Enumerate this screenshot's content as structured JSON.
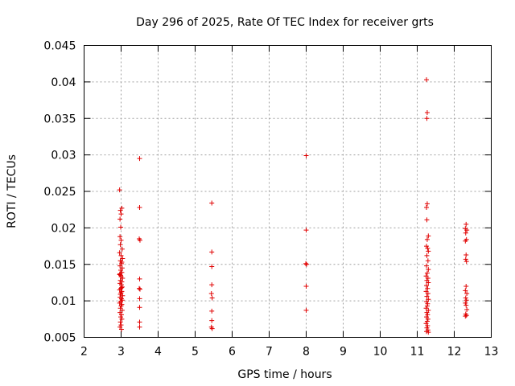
{
  "chart_data": {
    "type": "scatter",
    "title": "Day 296 of 2025, Rate Of TEC Index for receiver grts",
    "xlabel": "GPS time / hours",
    "ylabel": "ROTI / TECUs",
    "xlim": [
      2,
      13
    ],
    "ylim": [
      0.005,
      0.045
    ],
    "x_ticks": [
      "2",
      "3",
      "4",
      "5",
      "6",
      "7",
      "8",
      "9",
      "10",
      "11",
      "12",
      "13"
    ],
    "y_ticks": [
      "0.005",
      "0.01",
      "0.015",
      "0.02",
      "0.025",
      "0.03",
      "0.035",
      "0.04",
      "0.045"
    ],
    "grid": true,
    "marker": "plus",
    "color": "#e00000",
    "series": [
      {
        "points": [
          [
            2.96,
            0.0252
          ],
          [
            2.98,
            0.0224
          ],
          [
            3.0,
            0.0219
          ],
          [
            3.02,
            0.0227
          ],
          [
            2.97,
            0.0212
          ],
          [
            2.99,
            0.0201
          ],
          [
            2.97,
            0.0188
          ],
          [
            3.0,
            0.0183
          ],
          [
            2.98,
            0.0177
          ],
          [
            3.03,
            0.0171
          ],
          [
            2.96,
            0.0166
          ],
          [
            3.0,
            0.0162
          ],
          [
            3.04,
            0.0158
          ],
          [
            2.98,
            0.0155
          ],
          [
            3.01,
            0.0151
          ],
          [
            2.97,
            0.0148
          ],
          [
            3.03,
            0.0145
          ],
          [
            2.99,
            0.0142
          ],
          [
            3.02,
            0.0139
          ],
          [
            2.96,
            0.0136
          ],
          [
            3.0,
            0.0133
          ],
          [
            3.04,
            0.0131
          ],
          [
            2.98,
            0.0128
          ],
          [
            3.02,
            0.0126
          ],
          [
            2.97,
            0.0124
          ],
          [
            3.01,
            0.0122
          ],
          [
            3.03,
            0.0119
          ],
          [
            2.99,
            0.0117
          ],
          [
            2.96,
            0.0115
          ],
          [
            3.02,
            0.0113
          ],
          [
            3.0,
            0.0111
          ],
          [
            2.98,
            0.0109
          ],
          [
            3.04,
            0.0107
          ],
          [
            2.97,
            0.0105
          ],
          [
            3.01,
            0.0103
          ],
          [
            3.03,
            0.0101
          ],
          [
            2.99,
            0.0099
          ],
          [
            2.96,
            0.0097
          ],
          [
            3.02,
            0.0095
          ],
          [
            3.0,
            0.0093
          ],
          [
            2.98,
            0.009
          ],
          [
            3.03,
            0.0087
          ],
          [
            2.97,
            0.0084
          ],
          [
            3.01,
            0.0081
          ],
          [
            2.99,
            0.0078
          ],
          [
            3.02,
            0.0075
          ],
          [
            2.98,
            0.0071
          ],
          [
            3.0,
            0.0067
          ],
          [
            2.97,
            0.0064
          ],
          [
            3.01,
            0.0061
          ],
          [
            3.02,
            0.0153
          ],
          [
            2.99,
            0.0135
          ],
          [
            3.01,
            0.0118
          ],
          [
            2.97,
            0.0137
          ],
          [
            3.5,
            0.0295
          ],
          [
            3.5,
            0.0228
          ],
          [
            3.49,
            0.0185
          ],
          [
            3.51,
            0.0183
          ],
          [
            3.5,
            0.013
          ],
          [
            3.49,
            0.0117
          ],
          [
            3.51,
            0.0116
          ],
          [
            3.5,
            0.0103
          ],
          [
            3.5,
            0.0091
          ],
          [
            3.5,
            0.0071
          ],
          [
            3.5,
            0.0064
          ],
          [
            5.45,
            0.0234
          ],
          [
            5.45,
            0.0167
          ],
          [
            5.45,
            0.0147
          ],
          [
            5.45,
            0.0122
          ],
          [
            5.44,
            0.011
          ],
          [
            5.46,
            0.0104
          ],
          [
            5.45,
            0.0086
          ],
          [
            5.45,
            0.0073
          ],
          [
            5.44,
            0.0064
          ],
          [
            5.46,
            0.0062
          ],
          [
            8.0,
            0.0299
          ],
          [
            8.0,
            0.0197
          ],
          [
            7.99,
            0.0151
          ],
          [
            8.01,
            0.015
          ],
          [
            8.0,
            0.012
          ],
          [
            8.0,
            0.0087
          ],
          [
            11.25,
            0.0403
          ],
          [
            11.27,
            0.0358
          ],
          [
            11.26,
            0.035
          ],
          [
            11.27,
            0.0233
          ],
          [
            11.25,
            0.0228
          ],
          [
            11.26,
            0.0211
          ],
          [
            11.3,
            0.0189
          ],
          [
            11.27,
            0.0184
          ],
          [
            11.25,
            0.0175
          ],
          [
            11.28,
            0.0172
          ],
          [
            11.3,
            0.0168
          ],
          [
            11.26,
            0.0162
          ],
          [
            11.29,
            0.0155
          ],
          [
            11.25,
            0.0148
          ],
          [
            11.3,
            0.0143
          ],
          [
            11.27,
            0.0138
          ],
          [
            11.24,
            0.0134
          ],
          [
            11.29,
            0.0131
          ],
          [
            11.26,
            0.0128
          ],
          [
            11.3,
            0.0125
          ],
          [
            11.25,
            0.0121
          ],
          [
            11.28,
            0.0117
          ],
          [
            11.24,
            0.0113
          ],
          [
            11.29,
            0.011
          ],
          [
            11.26,
            0.0106
          ],
          [
            11.3,
            0.0102
          ],
          [
            11.25,
            0.0099
          ],
          [
            11.28,
            0.0096
          ],
          [
            11.27,
            0.0093
          ],
          [
            11.24,
            0.009
          ],
          [
            11.3,
            0.0087
          ],
          [
            11.26,
            0.0084
          ],
          [
            11.28,
            0.0081
          ],
          [
            11.25,
            0.0078
          ],
          [
            11.29,
            0.0075
          ],
          [
            11.27,
            0.0072
          ],
          [
            11.24,
            0.0069
          ],
          [
            11.28,
            0.0066
          ],
          [
            11.26,
            0.0063
          ],
          [
            11.29,
            0.006
          ],
          [
            11.25,
            0.0058
          ],
          [
            11.3,
            0.0057
          ],
          [
            12.32,
            0.0205
          ],
          [
            12.3,
            0.0199
          ],
          [
            12.34,
            0.0197
          ],
          [
            12.31,
            0.0193
          ],
          [
            12.33,
            0.0184
          ],
          [
            12.3,
            0.0182
          ],
          [
            12.32,
            0.0163
          ],
          [
            12.31,
            0.0157
          ],
          [
            12.33,
            0.0154
          ],
          [
            12.32,
            0.012
          ],
          [
            12.3,
            0.0114
          ],
          [
            12.34,
            0.011
          ],
          [
            12.31,
            0.0104
          ],
          [
            12.33,
            0.0101
          ],
          [
            12.3,
            0.0097
          ],
          [
            12.32,
            0.0094
          ],
          [
            12.34,
            0.0088
          ],
          [
            12.31,
            0.0082
          ],
          [
            12.33,
            0.008
          ],
          [
            12.3,
            0.0079
          ]
        ]
      }
    ]
  }
}
